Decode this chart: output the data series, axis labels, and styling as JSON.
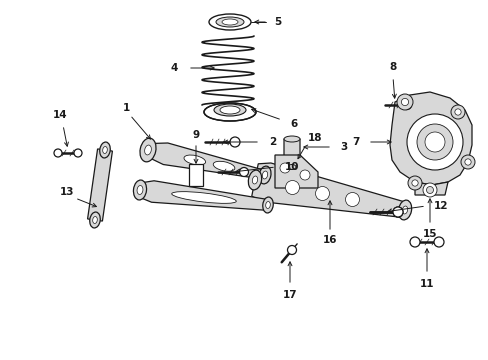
{
  "bg_color": "#ffffff",
  "fig_width": 4.89,
  "fig_height": 3.6,
  "dpi": 100,
  "line_color": "#1a1a1a",
  "fill_color": "#d8d8d8",
  "label_fontsize": 7.5
}
